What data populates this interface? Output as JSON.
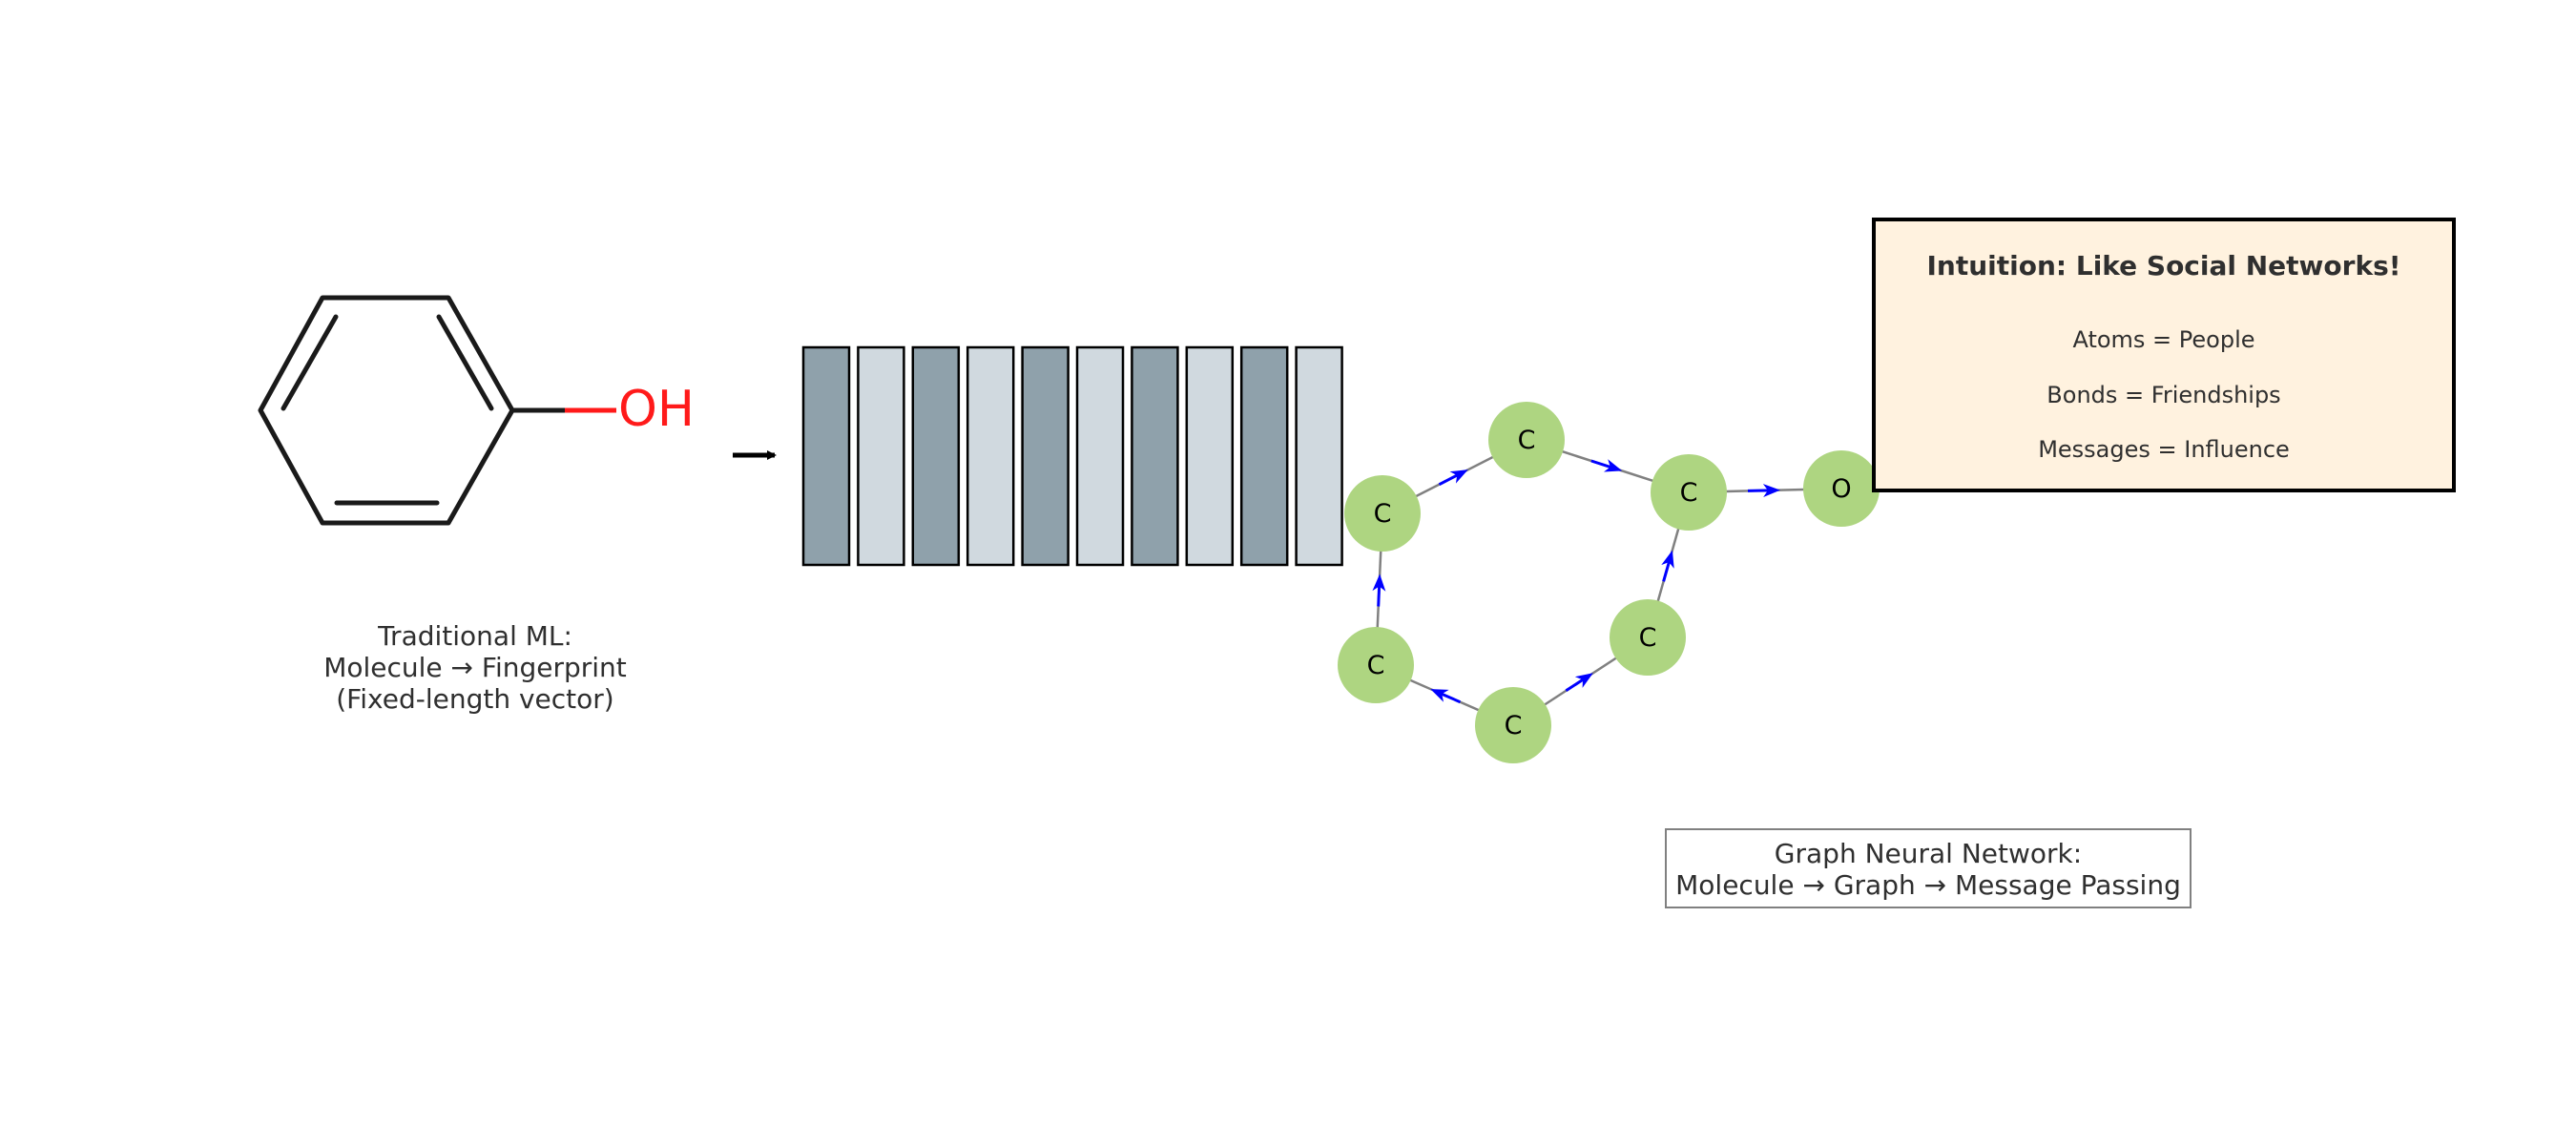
{
  "molecule": {
    "group_label": "OH",
    "colors": {
      "bond": "#1a1a1a",
      "hetero": "#ff1a1a"
    }
  },
  "traditional": {
    "caption": [
      "Traditional ML:",
      "Molecule → Fingerprint",
      "(Fixed-length vector)"
    ]
  },
  "fingerprint": {
    "bits": [
      1,
      0,
      1,
      0,
      1,
      0,
      1,
      0,
      1,
      0
    ],
    "colors": {
      "on": "#8fa1ab",
      "off": "#d0d9df",
      "border": "#000000"
    }
  },
  "graph": {
    "atoms": [
      "C",
      "C",
      "C",
      "C",
      "C",
      "C",
      "O"
    ],
    "colors": {
      "node": "#aed581",
      "edge": "#808080",
      "message": "#0000ff"
    }
  },
  "gnn": {
    "caption": [
      "Graph Neural Network:",
      "Molecule → Graph → Message Passing"
    ]
  },
  "intuition": {
    "title": "Intuition: Like Social Networks!",
    "lines": [
      "Atoms = People",
      "Bonds = Friendships",
      "Messages = Influence"
    ],
    "colors": {
      "background": "#fff2df",
      "border": "#000000"
    }
  }
}
